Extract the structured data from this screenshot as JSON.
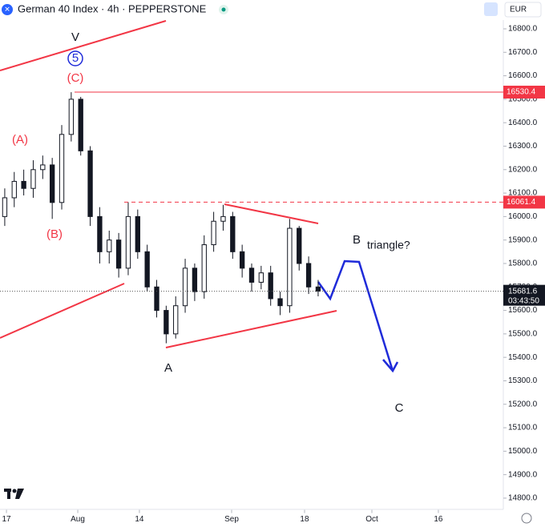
{
  "header": {
    "title": "German 40 Index · 4h · PEPPERSTONE",
    "currency": "EUR"
  },
  "chart_data": {
    "type": "candlestick",
    "x": [
      0,
      1,
      2,
      3,
      4,
      5,
      6,
      7,
      8,
      9,
      10,
      11,
      12,
      13,
      14,
      15,
      16,
      17,
      18,
      19,
      20,
      21,
      22,
      23,
      24,
      25,
      26,
      27,
      28,
      29,
      30,
      31,
      32,
      33
    ],
    "open": [
      16000,
      16080,
      16150,
      16120,
      16200,
      16220,
      16060,
      16350,
      16500,
      16280,
      16000,
      15850,
      15900,
      15780,
      16000,
      15850,
      15700,
      15600,
      15500,
      15620,
      15780,
      15680,
      15880,
      15980,
      16000,
      15850,
      15780,
      15720,
      15760,
      15650,
      15620,
      15950,
      15800,
      15700
    ],
    "high": [
      16120,
      16190,
      16200,
      16240,
      16260,
      16250,
      16390,
      16530,
      16510,
      16300,
      16040,
      15940,
      15930,
      16061,
      16030,
      15880,
      15730,
      15620,
      15660,
      15820,
      15800,
      15920,
      16020,
      16050,
      16020,
      15880,
      15800,
      15790,
      15790,
      15680,
      15990,
      15960,
      15830,
      15730
    ],
    "low": [
      15960,
      16040,
      16090,
      16080,
      16160,
      15990,
      16030,
      16320,
      16260,
      15960,
      15800,
      15800,
      15740,
      15750,
      15820,
      15680,
      15570,
      15460,
      15480,
      15590,
      15640,
      15650,
      15850,
      15940,
      15820,
      15740,
      15680,
      15690,
      15620,
      15580,
      15590,
      15770,
      15670,
      15660
    ],
    "close": [
      16080,
      16150,
      16120,
      16200,
      16220,
      16060,
      16350,
      16500,
      16280,
      16000,
      15850,
      15900,
      15780,
      16000,
      15850,
      15700,
      15600,
      15500,
      15620,
      15780,
      15680,
      15880,
      15980,
      16000,
      15850,
      15780,
      15720,
      15760,
      15650,
      15620,
      15950,
      15800,
      15700,
      15682
    ],
    "up_color": "#131722",
    "down_color": "#131722",
    "xlim": [
      -0.5,
      52.5
    ],
    "xticks": [
      {
        "value": 0.18,
        "label": "17"
      },
      {
        "value": 7.69,
        "label": "Aug"
      },
      {
        "value": 14.18,
        "label": "14"
      },
      {
        "value": 23.89,
        "label": "Sep"
      },
      {
        "value": 31.57,
        "label": "18"
      },
      {
        "value": 38.66,
        "label": "Oct"
      },
      {
        "value": 45.66,
        "label": "16"
      }
    ],
    "ylim": [
      14750,
      16870
    ],
    "yticks": [
      {
        "value": 14800,
        "label": "14800.0"
      },
      {
        "value": 14900,
        "label": "14900.0"
      },
      {
        "value": 15000,
        "label": "15000.0"
      },
      {
        "value": 15100,
        "label": "15100.0"
      },
      {
        "value": 15200,
        "label": "15200.0"
      },
      {
        "value": 15300,
        "label": "15300.0"
      },
      {
        "value": 15400,
        "label": "15400.0"
      },
      {
        "value": 15500,
        "label": "15500.0"
      },
      {
        "value": 15600,
        "label": "15600.0"
      },
      {
        "value": 15700,
        "label": "15700.0"
      },
      {
        "value": 15800,
        "label": "15800.0"
      },
      {
        "value": 15900,
        "label": "15900.0"
      },
      {
        "value": 16000,
        "label": "16000.0"
      },
      {
        "value": 16100,
        "label": "16100.0"
      },
      {
        "value": 16200,
        "label": "16200.0"
      },
      {
        "value": 16300,
        "label": "16300.0"
      },
      {
        "value": 16400,
        "label": "16400.0"
      },
      {
        "value": 16500,
        "label": "16500.0"
      },
      {
        "value": 16600,
        "label": "16600.0"
      },
      {
        "value": 16700,
        "label": "16700.0"
      },
      {
        "value": 16800,
        "label": "16800.0"
      }
    ],
    "levels": [
      {
        "value": 16530.4,
        "color": "#f23645",
        "dashed": false
      },
      {
        "value": 16061.4,
        "color": "#f23645",
        "dashed": true
      }
    ],
    "last_price": {
      "value": 15681.6,
      "countdown": "03:43:50",
      "color": "#131722"
    },
    "annotations": [
      "V",
      "5",
      "(C)",
      "(A)",
      "(B)",
      "A",
      "B",
      "triangle?",
      "C"
    ]
  }
}
